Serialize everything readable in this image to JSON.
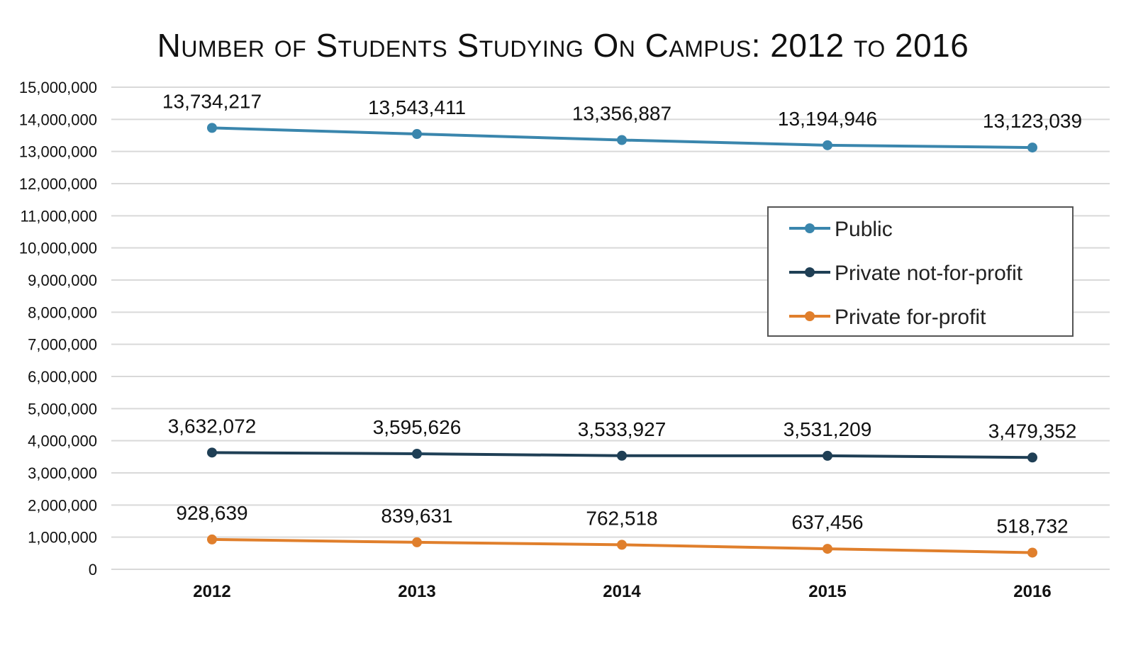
{
  "chart_data": {
    "type": "line",
    "title": "Number of Students Studying On Campus: 2012 to 2016",
    "xlabel": "",
    "ylabel": "",
    "categories": [
      "2012",
      "2013",
      "2014",
      "2015",
      "2016"
    ],
    "ylim": [
      0,
      15000000
    ],
    "yticks": [
      0,
      1000000,
      2000000,
      3000000,
      4000000,
      5000000,
      6000000,
      7000000,
      8000000,
      9000000,
      10000000,
      11000000,
      12000000,
      13000000,
      14000000,
      15000000
    ],
    "ytick_labels": [
      "0",
      "1,000,000",
      "2,000,000",
      "3,000,000",
      "4,000,000",
      "5,000,000",
      "6,000,000",
      "7,000,000",
      "8,000,000",
      "9,000,000",
      "10,000,000",
      "11,000,000",
      "12,000,000",
      "13,000,000",
      "14,000,000",
      "15,000,000"
    ],
    "grid": true,
    "legend_position": "right",
    "series": [
      {
        "name": "Public",
        "color": "#3a86ad",
        "values": [
          13734217,
          13543411,
          13356887,
          13194946,
          13123039
        ],
        "labels": [
          "13,734,217",
          "13,543,411",
          "13,356,887",
          "13,194,946",
          "13,123,039"
        ]
      },
      {
        "name": "Private not-for-profit",
        "color": "#1f3f55",
        "values": [
          3632072,
          3595626,
          3533927,
          3531209,
          3479352
        ],
        "labels": [
          "3,632,072",
          "3,595,626",
          "3,533,927",
          "3,531,209",
          "3,479,352"
        ]
      },
      {
        "name": "Private for-profit",
        "color": "#e07f2c",
        "values": [
          928639,
          839631,
          762518,
          637456,
          518732
        ],
        "labels": [
          "928,639",
          "839,631",
          "762,518",
          "637,456",
          "518,732"
        ]
      }
    ]
  }
}
